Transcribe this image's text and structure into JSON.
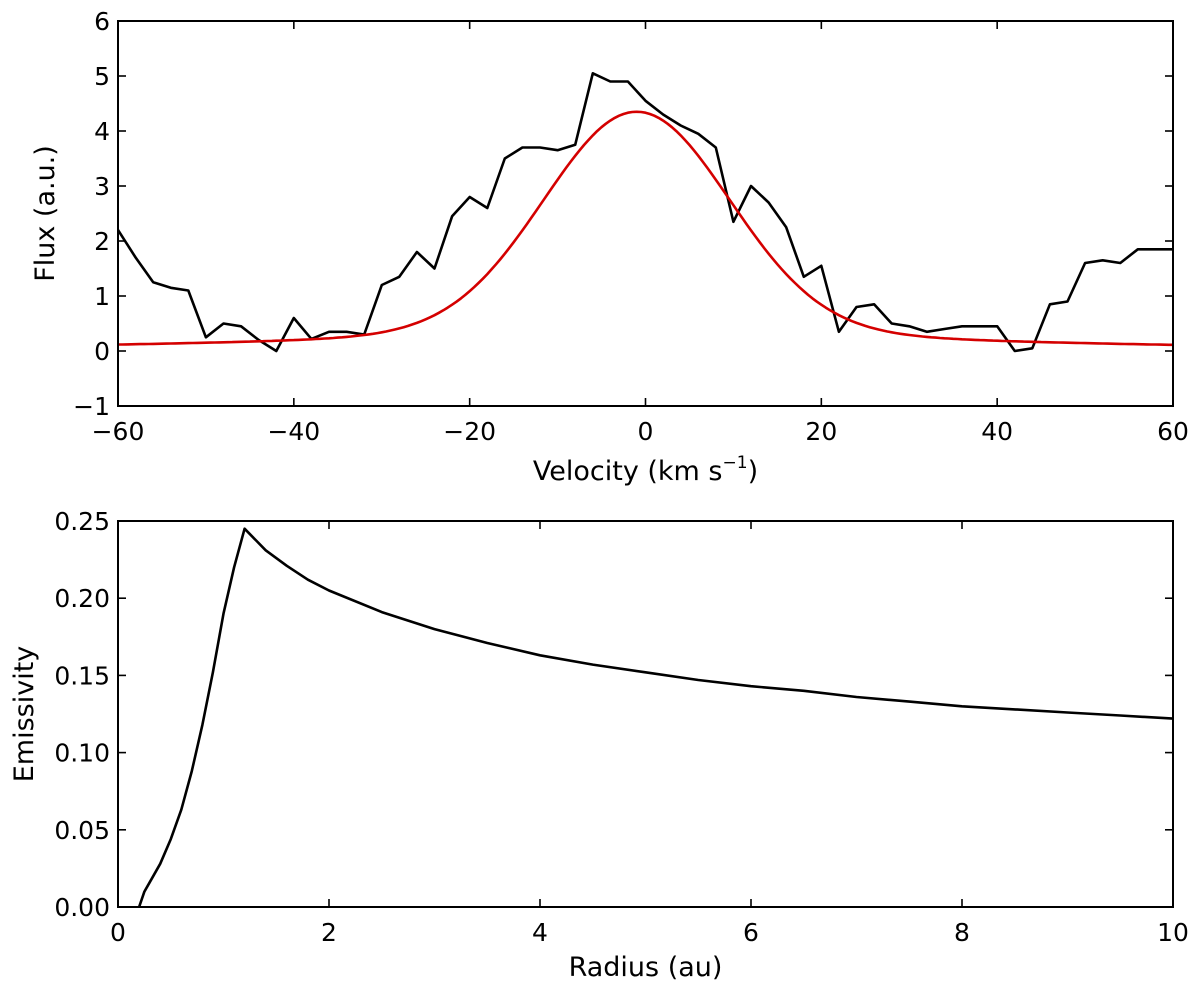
{
  "chart_data": [
    {
      "type": "line",
      "xlabel": "Velocity (km s",
      "xlabel_sup": "−1",
      "xlabel_close": ")",
      "ylabel": "Flux (a.u.)",
      "xlim": [
        -60,
        60
      ],
      "ylim": [
        -1,
        6
      ],
      "xticks": [
        -60,
        -40,
        -20,
        0,
        20,
        40,
        60
      ],
      "xtick_labels": [
        "−60",
        "−40",
        "−20",
        "0",
        "20",
        "40",
        "60"
      ],
      "yticks": [
        -1,
        0,
        1,
        2,
        3,
        4,
        5,
        6
      ],
      "ytick_labels": [
        "−1",
        "0",
        "1",
        "2",
        "3",
        "4",
        "5",
        "6"
      ],
      "grid": false,
      "series": [
        {
          "color": "#000000",
          "x": [
            -60,
            -58,
            -56,
            -54,
            -52,
            -50,
            -48,
            -46,
            -44,
            -42,
            -40,
            -38,
            -36,
            -34,
            -32,
            -30,
            -28,
            -26,
            -24,
            -22,
            -20,
            -18,
            -16,
            -14,
            -12,
            -10,
            -8,
            -6,
            -4,
            -2,
            0,
            2,
            4,
            6,
            8,
            10,
            12,
            14,
            16,
            18,
            20,
            22,
            24,
            26,
            28,
            30,
            32,
            34,
            36,
            38,
            40,
            42,
            44,
            46,
            48,
            50,
            52,
            54,
            56,
            58,
            60
          ],
          "y": [
            2.2,
            1.7,
            1.25,
            1.15,
            1.1,
            0.25,
            0.5,
            0.45,
            0.2,
            0.0,
            0.6,
            0.22,
            0.35,
            0.35,
            0.3,
            1.2,
            1.35,
            1.8,
            1.5,
            2.45,
            2.8,
            2.6,
            3.5,
            3.7,
            3.7,
            3.65,
            3.75,
            5.05,
            4.9,
            4.9,
            4.55,
            4.3,
            4.1,
            3.95,
            3.7,
            2.35,
            3.0,
            2.7,
            2.25,
            1.35,
            1.55,
            0.35,
            0.8,
            0.85,
            0.5,
            0.45,
            0.35,
            0.4,
            0.45,
            0.45,
            0.45,
            0.0,
            0.05,
            0.85,
            0.9,
            1.6,
            1.65,
            1.6,
            1.85,
            1.85,
            1.85
          ]
        },
        {
          "color": "#d40000",
          "model": {
            "amplitude": 4.35,
            "center": -1.0,
            "sigma": 10.5,
            "baseline_amplitude": 0.4,
            "baseline_width": 38
          }
        }
      ]
    },
    {
      "type": "line",
      "xlabel": "Radius (au)",
      "ylabel": "Emissivity",
      "xlim": [
        0,
        10
      ],
      "ylim": [
        0,
        0.25
      ],
      "xticks": [
        0,
        2,
        4,
        6,
        8,
        10
      ],
      "xtick_labels": [
        "0",
        "2",
        "4",
        "6",
        "8",
        "10"
      ],
      "yticks": [
        0,
        0.05,
        0.1,
        0.15,
        0.2,
        0.25
      ],
      "ytick_labels": [
        "0.00",
        "0.05",
        "0.10",
        "0.15",
        "0.20",
        "0.25"
      ],
      "grid": false,
      "series": [
        {
          "color": "#000000",
          "x": [
            0.2,
            0.25,
            0.3,
            0.4,
            0.5,
            0.6,
            0.7,
            0.8,
            0.9,
            1.0,
            1.1,
            1.2,
            1.4,
            1.6,
            1.8,
            2.0,
            2.5,
            3.0,
            3.5,
            4.0,
            4.5,
            5.0,
            5.5,
            6.0,
            6.5,
            7.0,
            7.5,
            8.0,
            8.5,
            9.0,
            9.5,
            10.0
          ],
          "y": [
            0.0,
            0.01,
            0.016,
            0.028,
            0.044,
            0.063,
            0.088,
            0.118,
            0.152,
            0.19,
            0.22,
            0.245,
            0.231,
            0.221,
            0.212,
            0.205,
            0.191,
            0.18,
            0.171,
            0.163,
            0.157,
            0.152,
            0.147,
            0.143,
            0.14,
            0.136,
            0.133,
            0.13,
            0.128,
            0.126,
            0.124,
            0.122
          ]
        }
      ]
    }
  ]
}
